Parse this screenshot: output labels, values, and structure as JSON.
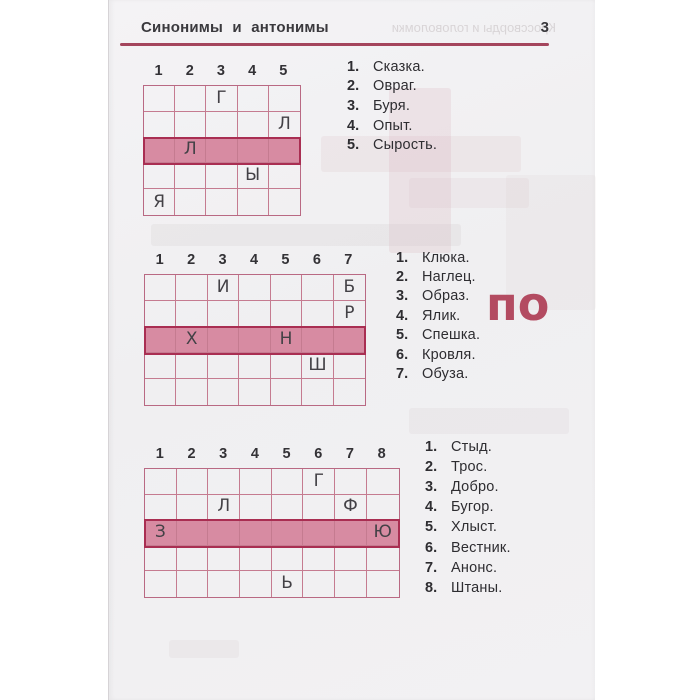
{
  "header": {
    "title": "Синонимы и антонимы",
    "page_number": "3"
  },
  "decor": {
    "watermark": "по",
    "ghost_header": "Кроссворды и головоломки"
  },
  "colors": {
    "accent": "#a4455c",
    "grid_line": "#c57b90",
    "grid_outline": "#b96983",
    "highlight_fill": "#d78ba2",
    "highlight_border": "#a92e52",
    "watermark": "#b34b61"
  },
  "puzzles": [
    {
      "columns": [
        "1",
        "2",
        "3",
        "4",
        "5"
      ],
      "rows": 5,
      "highlight_row": 3,
      "letters": [
        {
          "row": 1,
          "col": 3,
          "ch": "Г"
        },
        {
          "row": 2,
          "col": 5,
          "ch": "Л"
        },
        {
          "row": 3,
          "col": 2,
          "ch": "Л"
        },
        {
          "row": 4,
          "col": 4,
          "ch": "Ы"
        },
        {
          "row": 5,
          "col": 1,
          "ch": "Я"
        }
      ],
      "clues": [
        {
          "num": "1.",
          "text": "Сказка."
        },
        {
          "num": "2.",
          "text": "Овраг."
        },
        {
          "num": "3.",
          "text": "Буря."
        },
        {
          "num": "4.",
          "text": "Опыт."
        },
        {
          "num": "5.",
          "text": "Сырость."
        }
      ]
    },
    {
      "columns": [
        "1",
        "2",
        "3",
        "4",
        "5",
        "6",
        "7"
      ],
      "rows": 5,
      "highlight_row": 3,
      "letters": [
        {
          "row": 1,
          "col": 3,
          "ch": "И"
        },
        {
          "row": 1,
          "col": 7,
          "ch": "Б"
        },
        {
          "row": 2,
          "col": 7,
          "ch": "Р"
        },
        {
          "row": 3,
          "col": 2,
          "ch": "Х"
        },
        {
          "row": 3,
          "col": 5,
          "ch": "Н"
        },
        {
          "row": 4,
          "col": 6,
          "ch": "Ш"
        }
      ],
      "clues": [
        {
          "num": "1.",
          "text": "Клюка."
        },
        {
          "num": "2.",
          "text": "Наглец."
        },
        {
          "num": "3.",
          "text": "Образ."
        },
        {
          "num": "4.",
          "text": "Ялик."
        },
        {
          "num": "5.",
          "text": "Спешка."
        },
        {
          "num": "6.",
          "text": "Кровля."
        },
        {
          "num": "7.",
          "text": "Обуза."
        }
      ]
    },
    {
      "columns": [
        "1",
        "2",
        "3",
        "4",
        "5",
        "6",
        "7",
        "8"
      ],
      "rows": 5,
      "highlight_row": 3,
      "letters": [
        {
          "row": 1,
          "col": 6,
          "ch": "Г"
        },
        {
          "row": 2,
          "col": 3,
          "ch": "Л"
        },
        {
          "row": 2,
          "col": 7,
          "ch": "Ф"
        },
        {
          "row": 3,
          "col": 1,
          "ch": "З"
        },
        {
          "row": 3,
          "col": 8,
          "ch": "Ю"
        },
        {
          "row": 5,
          "col": 5,
          "ch": "Ь"
        }
      ],
      "clues": [
        {
          "num": "1.",
          "text": "Стыд."
        },
        {
          "num": "2.",
          "text": "Трос."
        },
        {
          "num": "3.",
          "text": "Добро."
        },
        {
          "num": "4.",
          "text": "Бугор."
        },
        {
          "num": "5.",
          "text": "Хлыст."
        },
        {
          "num": "6.",
          "text": "Вестник."
        },
        {
          "num": "7.",
          "text": "Анонс."
        },
        {
          "num": "8.",
          "text": "Штаны."
        }
      ]
    }
  ]
}
